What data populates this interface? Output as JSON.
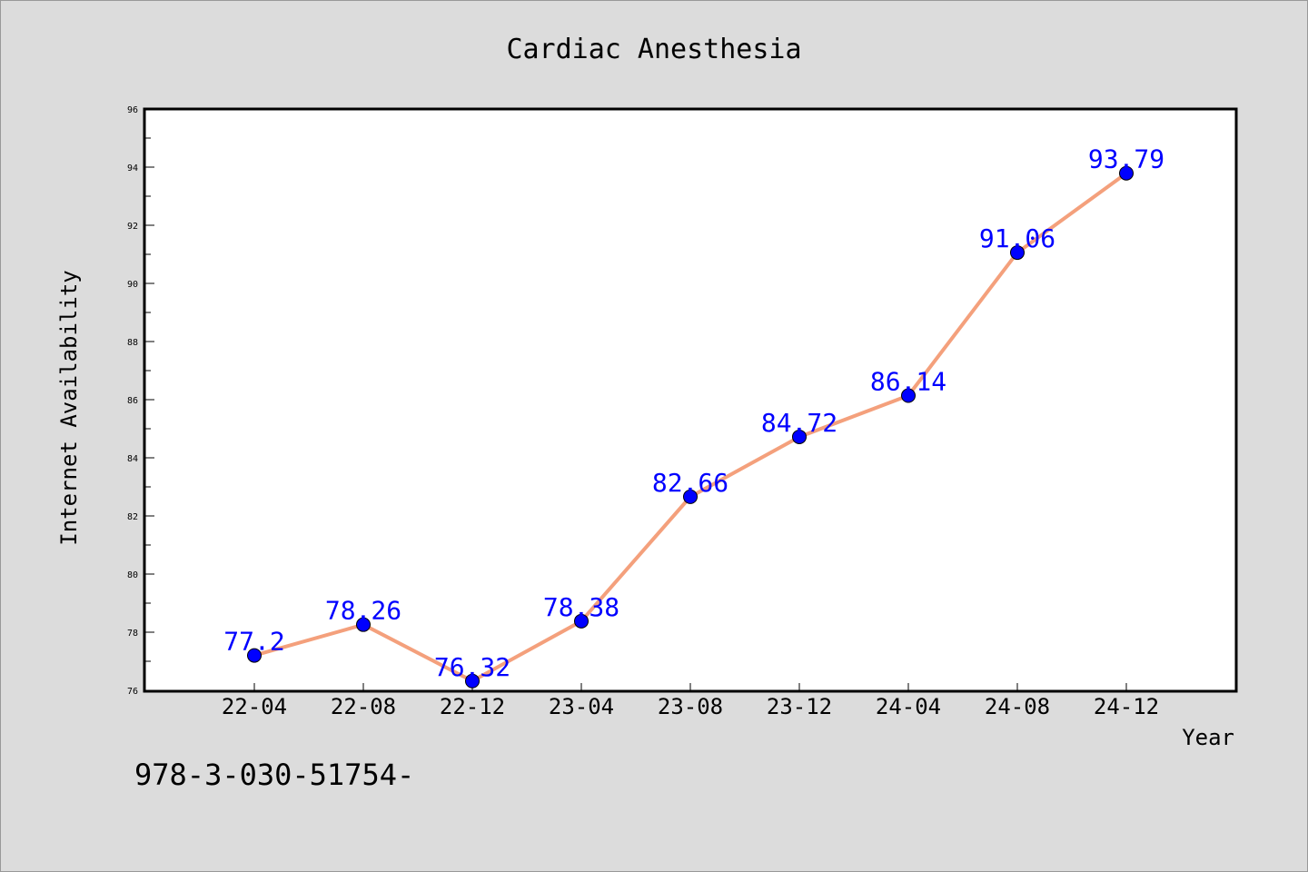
{
  "chart_data": {
    "type": "line",
    "title": "Cardiac Anesthesia",
    "xlabel": "Year",
    "ylabel": "Internet Availability",
    "categories": [
      "22-04",
      "22-08",
      "22-12",
      "23-04",
      "23-08",
      "23-12",
      "24-04",
      "24-08",
      "24-12"
    ],
    "values": [
      77.2,
      78.26,
      76.32,
      78.38,
      82.66,
      84.72,
      86.14,
      91.06,
      93.79
    ],
    "data_labels": [
      "77.2",
      "78.26",
      "76.32",
      "78.38",
      "82.66",
      "84.72",
      "86.14",
      "91.06",
      "93.79"
    ],
    "ylim": [
      76,
      96
    ],
    "yticks": [
      76,
      78,
      80,
      82,
      84,
      86,
      88,
      90,
      92,
      94,
      96
    ],
    "grid": false,
    "line_color": "#f4a07c",
    "marker_color": "#0000ff",
    "label_color": "#0000ff"
  },
  "footnote": "978-3-030-51754-"
}
